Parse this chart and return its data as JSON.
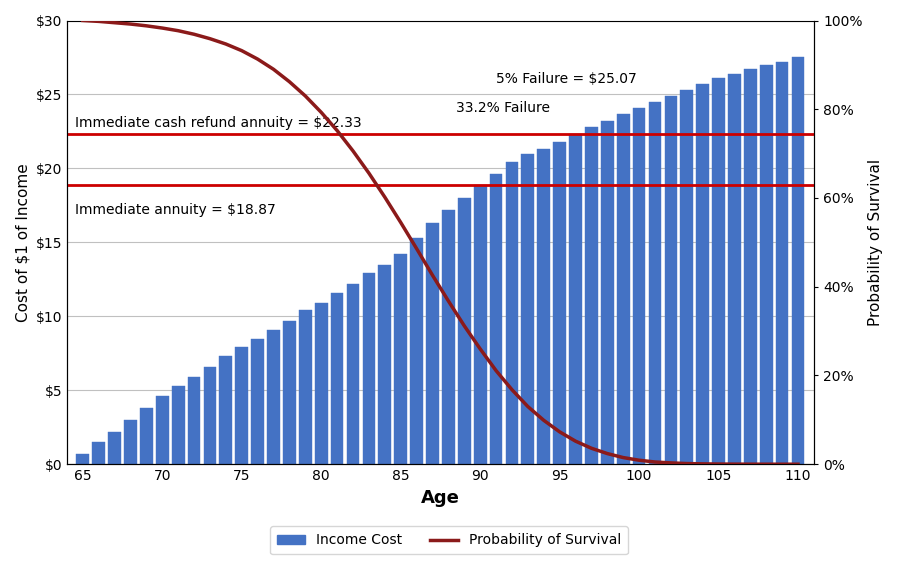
{
  "ages": [
    65,
    66,
    67,
    68,
    69,
    70,
    71,
    72,
    73,
    74,
    75,
    76,
    77,
    78,
    79,
    80,
    81,
    82,
    83,
    84,
    85,
    86,
    87,
    88,
    89,
    90,
    91,
    92,
    93,
    94,
    95,
    96,
    97,
    98,
    99,
    100,
    101,
    102,
    103,
    104,
    105,
    106,
    107,
    108,
    109,
    110
  ],
  "income_cost": [
    0.7,
    1.5,
    2.2,
    3.0,
    3.8,
    4.6,
    5.3,
    5.9,
    6.6,
    7.3,
    7.9,
    8.5,
    9.1,
    9.7,
    10.4,
    10.9,
    11.6,
    12.2,
    12.9,
    13.5,
    14.2,
    15.3,
    16.3,
    17.2,
    18.0,
    18.9,
    19.6,
    20.4,
    21.0,
    21.3,
    21.8,
    22.3,
    22.8,
    23.2,
    23.7,
    24.1,
    24.5,
    24.9,
    25.3,
    25.7,
    26.1,
    26.4,
    26.7,
    27.0,
    27.2,
    27.5
  ],
  "survival_prob": [
    100,
    99.8,
    99.5,
    99.2,
    98.8,
    98.3,
    97.7,
    96.9,
    95.9,
    94.7,
    93.2,
    91.3,
    89.0,
    86.2,
    83.0,
    79.3,
    75.2,
    70.6,
    65.6,
    60.2,
    54.5,
    48.6,
    42.6,
    36.8,
    31.2,
    26.0,
    21.1,
    16.8,
    13.0,
    9.9,
    7.3,
    5.2,
    3.6,
    2.4,
    1.5,
    0.9,
    0.5,
    0.3,
    0.15,
    0.08,
    0.04,
    0.02,
    0.01,
    0.005,
    0.002,
    0.001
  ],
  "immediate_annuity": 18.87,
  "cash_refund_annuity": 22.33,
  "failure_5pct": 25.07,
  "bar_color": "#4472C4",
  "bar_edge_color": "#4472C4",
  "line_color": "#8B1A1A",
  "hline_color": "#CC0000",
  "ylabel_left": "Cost of $1 of Income",
  "ylabel_right": "Probability of Survival",
  "xlabel": "Age",
  "ylim_left": [
    0,
    30
  ],
  "ylim_right": [
    0,
    100
  ],
  "xlim": [
    64,
    111
  ],
  "legend_bar_label": "Income Cost",
  "legend_line_label": "Probability of Survival",
  "annot_immediate": "Immediate annuity = $18.87",
  "annot_cash_refund": "Immediate cash refund annuity = $22.33",
  "annot_5pct": "5% Failure = $25.07",
  "annot_332pct": "33.2% Failure",
  "bg_color": "#FFFFFF",
  "grid_color": "#C0C0C0"
}
